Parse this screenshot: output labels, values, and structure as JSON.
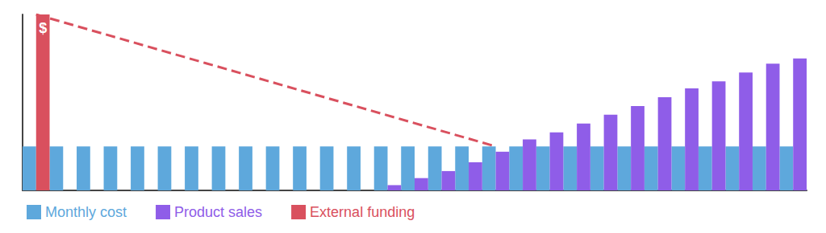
{
  "chart_data": {
    "type": "bar",
    "categories": [
      null,
      null,
      null,
      null,
      null,
      null,
      null,
      null,
      null,
      null,
      null,
      null,
      null,
      null,
      null,
      null,
      null,
      null,
      null,
      null,
      null,
      null,
      null,
      null,
      null,
      null,
      null,
      null,
      null
    ],
    "series": [
      {
        "name": "Monthly cost",
        "color": "#5ea8dc",
        "values": [
          25,
          25,
          25,
          25,
          25,
          25,
          25,
          25,
          25,
          25,
          25,
          25,
          25,
          25,
          25,
          25,
          25,
          25,
          25,
          25,
          25,
          25,
          25,
          25,
          25,
          25,
          25,
          25,
          25
        ]
      },
      {
        "name": "Product sales",
        "color": "#8f5de8",
        "values": [
          null,
          null,
          null,
          null,
          null,
          null,
          null,
          null,
          null,
          null,
          null,
          null,
          null,
          3,
          7,
          11,
          16,
          22,
          29,
          33,
          38,
          43,
          48,
          53,
          58,
          62,
          67,
          72,
          75
        ]
      },
      {
        "name": "External funding",
        "color": "#d9505e",
        "values": [
          100,
          null,
          null,
          null,
          null,
          null,
          null,
          null,
          null,
          null,
          null,
          null,
          null,
          null,
          null,
          null,
          null,
          null,
          null,
          null,
          null,
          null,
          null,
          null,
          null,
          null,
          null,
          null,
          null
        ],
        "annotation": {
          "text": "$",
          "index": 0
        },
        "burn_down": {
          "start_index": 0,
          "start": 100,
          "end_index": 17,
          "end": 25,
          "line_style": "dashed"
        }
      }
    ],
    "ylim": [
      0,
      100
    ],
    "yticks": [],
    "grid": false,
    "tick_labels": false,
    "legend": "bottom-left"
  }
}
